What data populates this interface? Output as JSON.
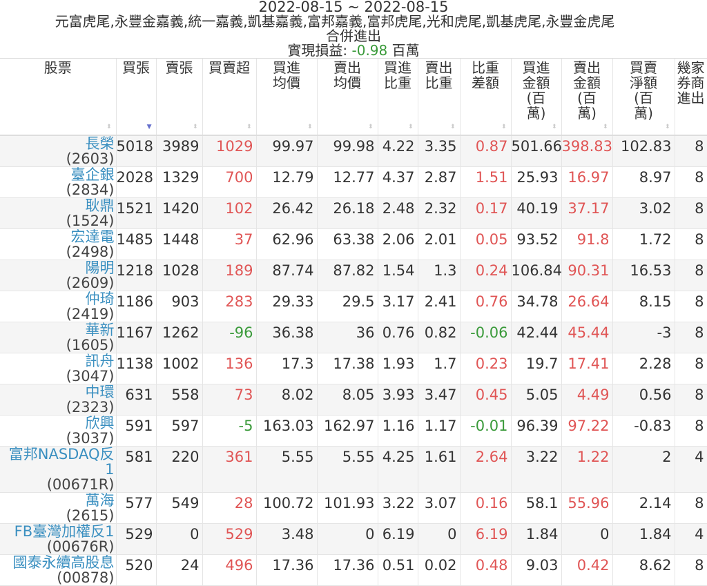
{
  "title": {
    "date_range": "2022-08-15 ~ 2022-08-15",
    "brokers": "元富虎尾,永豐金嘉義,統一嘉義,凱基嘉義,富邦嘉義,富邦虎尾,光和虎尾,凱基虎尾,永豐金虎尾",
    "subtitle": "合併進出",
    "pl_label": "實現損益: ",
    "pl_value": "-0.98",
    "pl_unit": " 百萬"
  },
  "colors": {
    "positive": "#e05555",
    "negative": "#3a9a3a",
    "link": "#3a8fc0",
    "sort_active": "#6670cc"
  },
  "columns": [
    "股票",
    "買張",
    "賣張",
    "買賣超",
    "買進均價",
    "賣出均價",
    "買進比重",
    "賣出比重",
    "比重差額",
    "買進金額(百萬)",
    "賣出金額(百萬)",
    "買賣淨額(百萬)",
    "幾家券商進出"
  ],
  "sorted_column": "買張",
  "sort_direction": "descending",
  "rows": [
    [
      "長榮",
      "(2603)",
      "5018",
      "3989",
      "1029",
      "99.97",
      "99.98",
      "4.22",
      "3.35",
      "0.87",
      "501.66",
      "398.83",
      "102.83",
      "8"
    ],
    [
      "臺企銀",
      "(2834)",
      "2028",
      "1329",
      "700",
      "12.79",
      "12.77",
      "4.37",
      "2.87",
      "1.51",
      "25.93",
      "16.97",
      "8.97",
      "8"
    ],
    [
      "耿鼎",
      "(1524)",
      "1521",
      "1420",
      "102",
      "26.42",
      "26.18",
      "2.48",
      "2.32",
      "0.17",
      "40.19",
      "37.17",
      "3.02",
      "8"
    ],
    [
      "宏達電",
      "(2498)",
      "1485",
      "1448",
      "37",
      "62.96",
      "63.38",
      "2.06",
      "2.01",
      "0.05",
      "93.52",
      "91.8",
      "1.72",
      "8"
    ],
    [
      "陽明",
      "(2609)",
      "1218",
      "1028",
      "189",
      "87.74",
      "87.82",
      "1.54",
      "1.3",
      "0.24",
      "106.84",
      "90.31",
      "16.53",
      "8"
    ],
    [
      "仲琦",
      "(2419)",
      "1186",
      "903",
      "283",
      "29.33",
      "29.5",
      "3.17",
      "2.41",
      "0.76",
      "34.78",
      "26.64",
      "8.15",
      "8"
    ],
    [
      "華新",
      "(1605)",
      "1167",
      "1262",
      "-96",
      "36.38",
      "36",
      "0.76",
      "0.82",
      "-0.06",
      "42.44",
      "45.44",
      "-3",
      "8"
    ],
    [
      "訊舟",
      "(3047)",
      "1138",
      "1002",
      "136",
      "17.3",
      "17.38",
      "1.93",
      "1.7",
      "0.23",
      "19.7",
      "17.41",
      "2.28",
      "8"
    ],
    [
      "中環",
      "(2323)",
      "631",
      "558",
      "73",
      "8.02",
      "8.05",
      "3.93",
      "3.47",
      "0.45",
      "5.05",
      "4.49",
      "0.56",
      "8"
    ],
    [
      "欣興",
      "(3037)",
      "591",
      "597",
      "-5",
      "163.03",
      "162.97",
      "1.16",
      "1.17",
      "-0.01",
      "96.39",
      "97.22",
      "-0.83",
      "8"
    ],
    [
      "富邦NASDAQ反1",
      "(00671R)",
      "581",
      "220",
      "361",
      "5.55",
      "5.55",
      "4.25",
      "1.61",
      "2.64",
      "3.22",
      "1.22",
      "2",
      "4"
    ],
    [
      "萬海",
      "(2615)",
      "577",
      "549",
      "28",
      "100.72",
      "101.93",
      "3.22",
      "3.07",
      "0.16",
      "58.1",
      "55.96",
      "2.14",
      "8"
    ],
    [
      "FB臺灣加權反1",
      "(00676R)",
      "529",
      "0",
      "529",
      "3.48",
      "0",
      "6.19",
      "0",
      "6.19",
      "1.84",
      "0",
      "1.84",
      "4"
    ],
    [
      "國泰永續高股息",
      "(00878)",
      "520",
      "24",
      "496",
      "17.36",
      "17.36",
      "0.51",
      "0.02",
      "0.48",
      "9.03",
      "0.42",
      "8.62",
      "8"
    ]
  ]
}
